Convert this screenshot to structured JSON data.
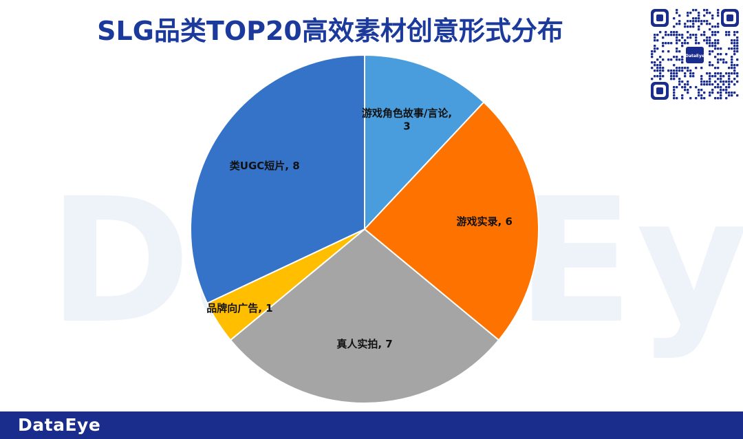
{
  "title": "SLG品类TOP20高效素材创意形式分布",
  "watermark_text": "DataEye",
  "footer": {
    "brand": "DataEye"
  },
  "qr": {
    "center_label": "DataEye"
  },
  "chart_data": {
    "type": "pie",
    "title": "SLG品类TOP20高效素材创意形式分布",
    "start_angle_deg": 0,
    "direction": "clockwise",
    "slices": [
      {
        "label": "游戏角色故事/言论",
        "value": 3,
        "color": "#4a9ddc"
      },
      {
        "label": "游戏实录",
        "value": 6,
        "color": "#fe7300"
      },
      {
        "label": "真人实拍",
        "value": 7,
        "color": "#a5a5a5"
      },
      {
        "label": "品牌向广告",
        "value": 1,
        "color": "#ffbf00"
      },
      {
        "label": "类UGC短片",
        "value": 8,
        "color": "#3473c8"
      }
    ]
  }
}
